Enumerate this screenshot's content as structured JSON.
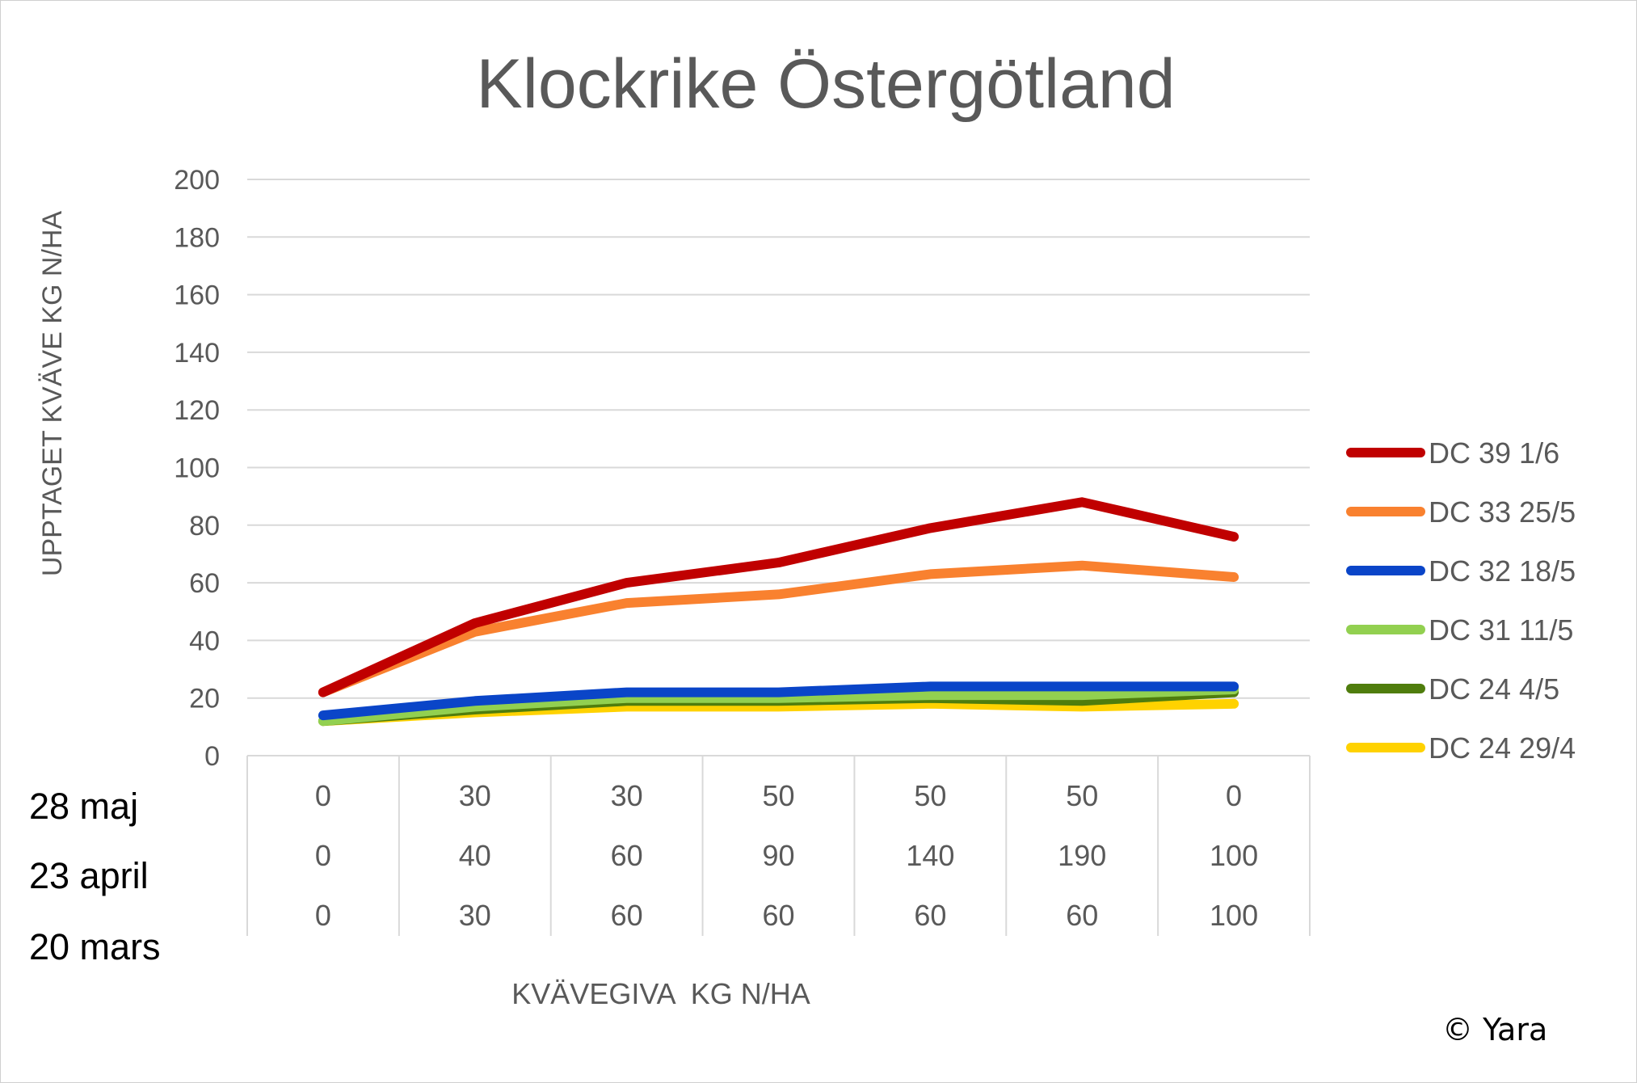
{
  "chart_data": {
    "type": "line",
    "title": "Klockrike Östergötland",
    "xlabel": "KVÄVEGIVA  KG N/HA",
    "ylabel": "UPPTAGET KVÄVE KG N/HA",
    "ylim": [
      0,
      200
    ],
    "yticks": [
      0,
      20,
      40,
      60,
      80,
      100,
      120,
      140,
      160,
      180,
      200
    ],
    "grid": true,
    "legend_position": "right",
    "category_rows": [
      {
        "label": "28 maj",
        "values": [
          "0",
          "30",
          "30",
          "50",
          "50",
          "50",
          "0"
        ]
      },
      {
        "label": "23 april",
        "values": [
          "0",
          "40",
          "60",
          "90",
          "140",
          "190",
          "100"
        ]
      },
      {
        "label": "20 mars",
        "values": [
          "0",
          "30",
          "60",
          "60",
          "60",
          "60",
          "100"
        ]
      }
    ],
    "series": [
      {
        "name": "DC 39 1/6",
        "color": "#c00000",
        "values": [
          22,
          46,
          60,
          67,
          79,
          88,
          76
        ]
      },
      {
        "name": "DC 33 25/5",
        "color": "#f9812f",
        "values": [
          22,
          43,
          53,
          56,
          63,
          66,
          62
        ]
      },
      {
        "name": "DC 32 18/5",
        "color": "#0a45c8",
        "values": [
          14,
          19,
          22,
          22,
          24,
          24,
          24
        ]
      },
      {
        "name": "DC 31 11/5",
        "color": "#92d050",
        "values": [
          12,
          17,
          20,
          20,
          21,
          21,
          23
        ]
      },
      {
        "name": "DC 24 4/5",
        "color": "#4f7d0d",
        "values": [
          12,
          16,
          19,
          19,
          20,
          19,
          22
        ]
      },
      {
        "name": "DC 24 29/4",
        "color": "#ffd200",
        "values": [
          12,
          15,
          17,
          17,
          18,
          17,
          18
        ]
      }
    ]
  },
  "copyright": "© Yara"
}
